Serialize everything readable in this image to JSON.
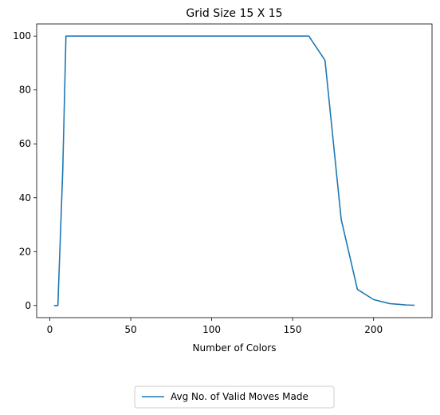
{
  "chart_data": {
    "type": "line",
    "title": "Grid Size 15 X 15",
    "xlabel": "Number of Colors",
    "ylabel": "",
    "xlim": [
      -8.1,
      236.1
    ],
    "ylim": [
      -4.5,
      104.5
    ],
    "xticks": [
      0,
      50,
      100,
      150,
      200
    ],
    "yticks": [
      0,
      20,
      40,
      60,
      80,
      100
    ],
    "grid": false,
    "legend_position": "below plot, centered",
    "series": [
      {
        "name": "Avg No. of Valid Moves Made",
        "color": "#1f77b4",
        "x": [
          3,
          5,
          8,
          10,
          20,
          30,
          40,
          50,
          60,
          70,
          80,
          90,
          100,
          110,
          120,
          130,
          140,
          150,
          160,
          170,
          180,
          190,
          200,
          210,
          220,
          225
        ],
        "y": [
          0,
          0,
          50,
          100,
          100,
          100,
          100,
          100,
          100,
          100,
          100,
          100,
          100,
          100,
          100,
          100,
          100,
          100,
          100,
          91,
          32,
          6,
          2.2,
          0.7,
          0.2,
          0.1
        ]
      }
    ]
  }
}
